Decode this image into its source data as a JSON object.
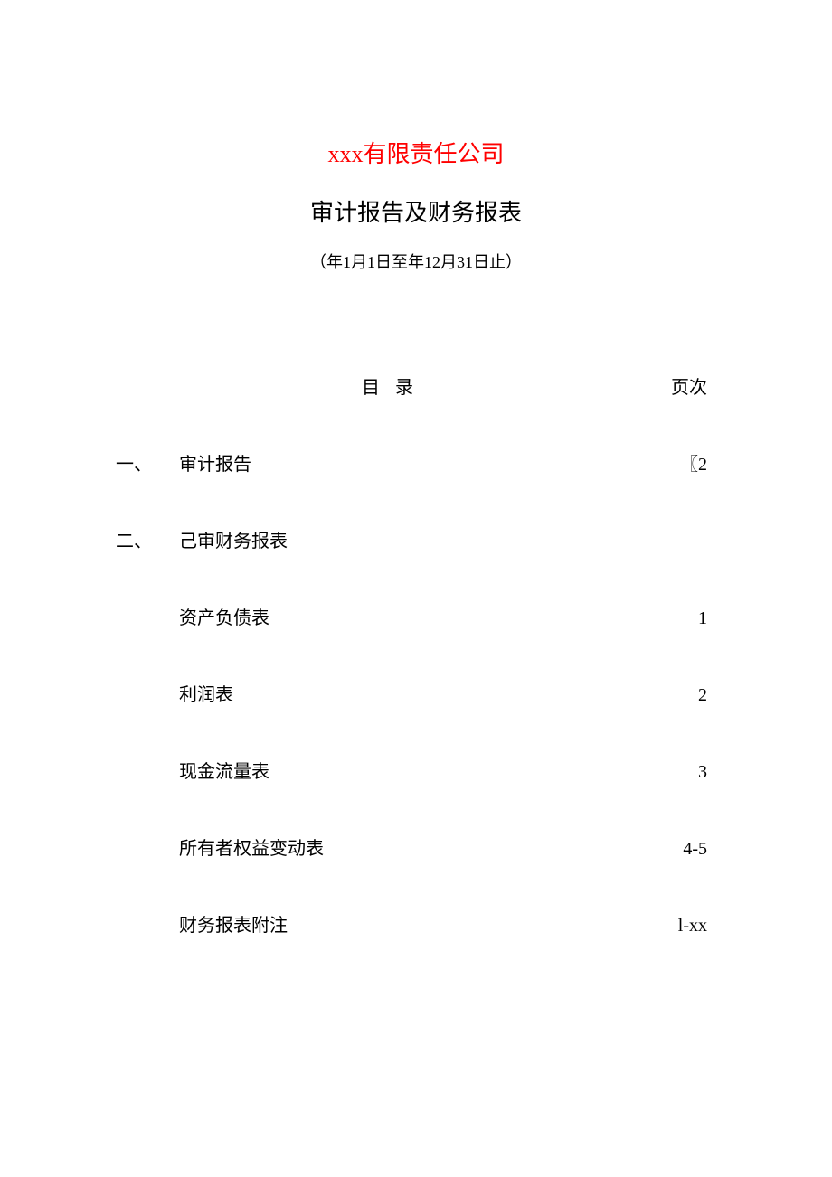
{
  "header": {
    "company_name": "xxx有限责任公司",
    "report_title": "审计报告及财务报表",
    "period": "（年1月1日至年12月31日止）"
  },
  "toc": {
    "heading": "目 录",
    "page_label": "页次",
    "sections": [
      {
        "num": "一、",
        "label": "审计报告",
        "page": "〖2"
      },
      {
        "num": "二、",
        "label": "己审财务报表",
        "page": ""
      }
    ],
    "subsections": [
      {
        "label": "资产负债表",
        "page": "1"
      },
      {
        "label": "利润表",
        "page": "2"
      },
      {
        "label": "现金流量表",
        "page": "3"
      },
      {
        "label": "所有者权益变动表",
        "page": "4-5"
      },
      {
        "label": "财务报表附注",
        "page": "l-xx"
      }
    ]
  },
  "colors": {
    "company_name_color": "#ff0000",
    "text_color": "#000000",
    "background_color": "#ffffff"
  },
  "typography": {
    "title_fontsize": 26,
    "period_fontsize": 18,
    "body_fontsize": 20,
    "font_family": "SimSun"
  }
}
